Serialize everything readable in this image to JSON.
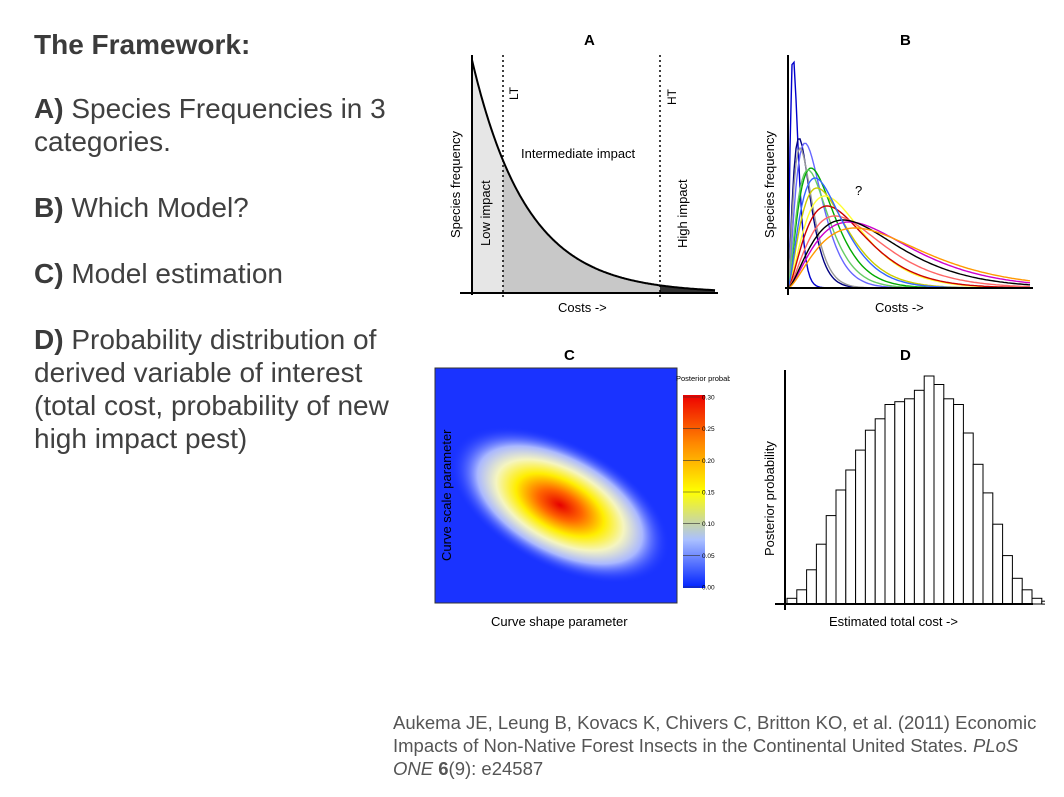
{
  "slide": {
    "title": "The Framework:",
    "items": [
      {
        "letter": "A)",
        "text": "Species Frequencies in 3 categories."
      },
      {
        "letter": "B)",
        "text": "Which Model?"
      },
      {
        "letter": "C)",
        "text": "Model estimation"
      },
      {
        "letter": "D)",
        "text": "Probability distribution of derived variable of interest (total cost, probability of new high impact pest)"
      }
    ],
    "citation": {
      "authors": "Aukema JE, Leung B, Kovacs K, Chivers C, Britton KO, et al. (2011) Economic Impacts of Non-Native Forest Insects in the Continental United States.",
      "journal": "PLoS ONE",
      "volume": "6",
      "rest": "(9): e24587"
    }
  },
  "colors": {
    "curve_palette": [
      "#0000cc",
      "#000080",
      "#6666ff",
      "#999999",
      "#00aa00",
      "#66cc66",
      "#cccc00",
      "#ffff33",
      "#cc0000",
      "#ff6666",
      "#cc00cc",
      "#000000",
      "#3366ff",
      "#ff9900"
    ]
  },
  "chart_data": [
    {
      "panel": "A",
      "type": "area",
      "xlabel": "Costs ->",
      "ylabel": "Species frequency",
      "thresholds": [
        "LT",
        "HT"
      ],
      "regions": [
        "Low impact",
        "Intermediate impact",
        "High impact"
      ]
    },
    {
      "panel": "B",
      "type": "line",
      "xlabel": "Costs ->",
      "ylabel": "Species frequency",
      "annotation": "?"
    },
    {
      "panel": "C",
      "type": "heatmap",
      "xlabel": "Curve shape parameter",
      "ylabel": "Curve scale parameter",
      "legend_title": "Posterior probability",
      "legend_ticks": [
        "0.30",
        "0.25",
        "0.20",
        "0.15",
        "0.10",
        "0.05",
        "0.00"
      ]
    },
    {
      "panel": "D",
      "type": "bar",
      "xlabel": "Estimated total cost ->",
      "ylabel": "Posterior probability",
      "values": [
        2,
        5,
        12,
        21,
        31,
        40,
        47,
        54,
        61,
        65,
        70,
        71,
        72,
        75,
        80,
        77,
        72,
        70,
        60,
        49,
        39,
        28,
        17,
        9,
        5,
        2,
        1
      ]
    }
  ]
}
